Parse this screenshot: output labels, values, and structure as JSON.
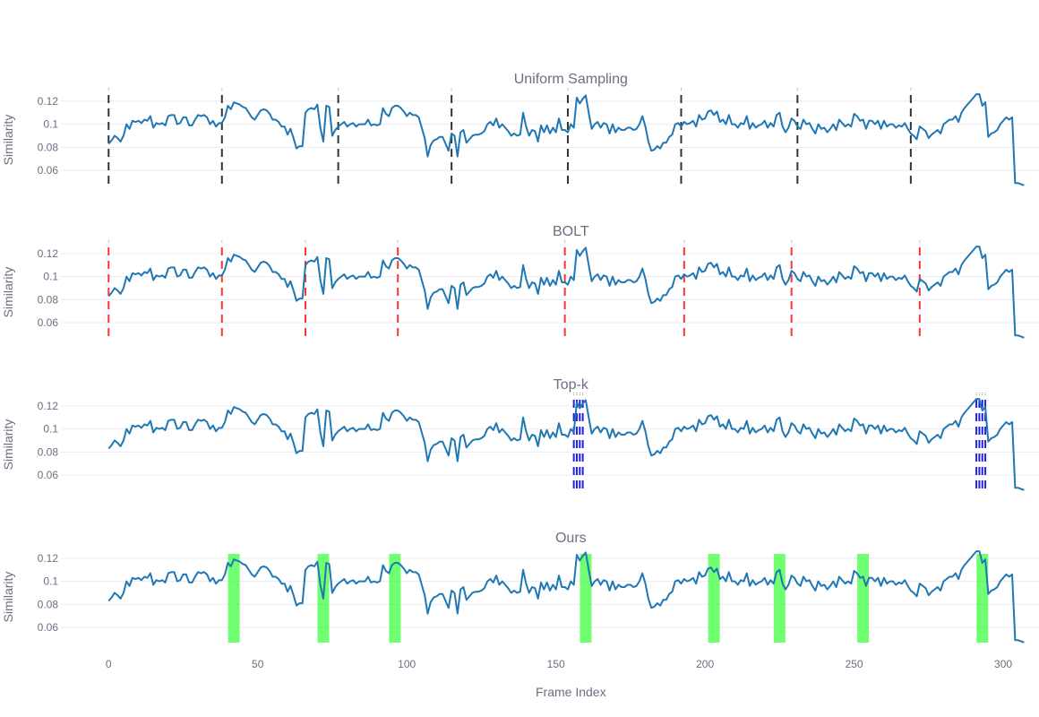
{
  "chart_data": {
    "type": "line",
    "xlabel": "Frame Index",
    "ylabel": "Similarity",
    "xlim": [
      -16,
      312
    ],
    "ylim": [
      0.043,
      0.13
    ],
    "xticks": [
      0,
      50,
      100,
      150,
      200,
      250,
      300
    ],
    "yticks": [
      0.06,
      0.08,
      0.1,
      0.12
    ],
    "ytick_labels": [
      "0.06",
      "0.08",
      "0.1",
      "0.12"
    ],
    "series_color": "#1f77b4",
    "similarity": {
      "x_start": 0,
      "x_step": 1,
      "values": [
        0.083,
        0.086,
        0.09,
        0.088,
        0.085,
        0.09,
        0.1,
        0.096,
        0.103,
        0.102,
        0.103,
        0.101,
        0.104,
        0.103,
        0.107,
        0.097,
        0.101,
        0.1,
        0.101,
        0.099,
        0.107,
        0.108,
        0.108,
        0.1,
        0.101,
        0.106,
        0.106,
        0.099,
        0.099,
        0.104,
        0.108,
        0.107,
        0.108,
        0.106,
        0.1,
        0.103,
        0.098,
        0.101,
        0.101,
        0.106,
        0.116,
        0.113,
        0.119,
        0.118,
        0.117,
        0.115,
        0.114,
        0.11,
        0.106,
        0.104,
        0.108,
        0.112,
        0.113,
        0.112,
        0.109,
        0.104,
        0.104,
        0.102,
        0.098,
        0.098,
        0.091,
        0.096,
        0.088,
        0.079,
        0.081,
        0.081,
        0.11,
        0.113,
        0.114,
        0.113,
        0.117,
        0.097,
        0.085,
        0.116,
        0.115,
        0.09,
        0.095,
        0.098,
        0.1,
        0.102,
        0.098,
        0.1,
        0.101,
        0.098,
        0.1,
        0.1,
        0.1,
        0.104,
        0.099,
        0.1,
        0.099,
        0.1,
        0.114,
        0.109,
        0.107,
        0.114,
        0.116,
        0.116,
        0.114,
        0.111,
        0.107,
        0.11,
        0.108,
        0.108,
        0.106,
        0.097,
        0.088,
        0.072,
        0.082,
        0.086,
        0.087,
        0.089,
        0.089,
        0.083,
        0.077,
        0.092,
        0.09,
        0.072,
        0.093,
        0.095,
        0.084,
        0.087,
        0.09,
        0.091,
        0.091,
        0.092,
        0.094,
        0.1,
        0.102,
        0.099,
        0.105,
        0.097,
        0.1,
        0.097,
        0.094,
        0.09,
        0.092,
        0.09,
        0.091,
        0.11,
        0.098,
        0.09,
        0.095,
        0.094,
        0.085,
        0.099,
        0.093,
        0.099,
        0.092,
        0.097,
        0.093,
        0.105,
        0.095,
        0.095,
        0.093,
        0.1,
        0.097,
        0.123,
        0.118,
        0.122,
        0.125,
        0.11,
        0.096,
        0.1,
        0.102,
        0.097,
        0.101,
        0.1,
        0.092,
        0.1,
        0.093,
        0.097,
        0.095,
        0.095,
        0.097,
        0.097,
        0.095,
        0.096,
        0.1,
        0.107,
        0.098,
        0.085,
        0.077,
        0.078,
        0.081,
        0.079,
        0.084,
        0.084,
        0.089,
        0.091,
        0.1,
        0.101,
        0.098,
        0.102,
        0.1,
        0.101,
        0.103,
        0.098,
        0.108,
        0.104,
        0.105,
        0.111,
        0.112,
        0.108,
        0.111,
        0.102,
        0.104,
        0.1,
        0.108,
        0.1,
        0.1,
        0.097,
        0.101,
        0.1,
        0.107,
        0.096,
        0.101,
        0.097,
        0.099,
        0.1,
        0.103,
        0.097,
        0.101,
        0.098,
        0.108,
        0.11,
        0.098,
        0.093,
        0.097,
        0.105,
        0.103,
        0.098,
        0.096,
        0.104,
        0.1,
        0.101,
        0.096,
        0.092,
        0.1,
        0.096,
        0.097,
        0.093,
        0.096,
        0.1,
        0.095,
        0.104,
        0.101,
        0.098,
        0.1,
        0.098,
        0.109,
        0.107,
        0.103,
        0.104,
        0.096,
        0.103,
        0.103,
        0.1,
        0.103,
        0.096,
        0.103,
        0.098,
        0.1,
        0.1,
        0.097,
        0.099,
        0.098,
        0.101,
        0.096,
        0.092,
        0.09,
        0.087,
        0.098,
        0.096,
        0.094,
        0.088,
        0.091,
        0.093,
        0.095,
        0.092,
        0.1,
        0.102,
        0.104,
        0.104,
        0.107,
        0.102,
        0.11,
        0.114,
        0.117,
        0.12,
        0.123,
        0.126,
        0.126,
        0.116,
        0.119,
        0.089,
        0.092,
        0.093,
        0.095,
        0.1,
        0.103,
        0.106,
        0.104,
        0.106,
        0.049,
        0.049,
        0.048,
        0.047
      ]
    },
    "panels": [
      {
        "title": "Uniform Sampling",
        "marker_style": "dashed",
        "marker_color": "#333333",
        "markers": [
          0,
          38,
          77,
          115,
          154,
          192,
          231,
          269
        ]
      },
      {
        "title": "BOLT",
        "marker_style": "dashed",
        "marker_color": "#ff3333",
        "markers": [
          0,
          38,
          66,
          97,
          153,
          193,
          229,
          272
        ]
      },
      {
        "title": "Top-k",
        "marker_style": "dashed",
        "marker_color": "#2222dd",
        "markers": [
          156,
          157,
          158,
          159,
          291,
          292,
          293,
          294
        ]
      },
      {
        "title": "Ours",
        "marker_style": "band",
        "marker_color": "#33ff33",
        "markers": [
          42,
          72,
          96,
          160,
          203,
          225,
          253,
          293
        ]
      }
    ]
  }
}
